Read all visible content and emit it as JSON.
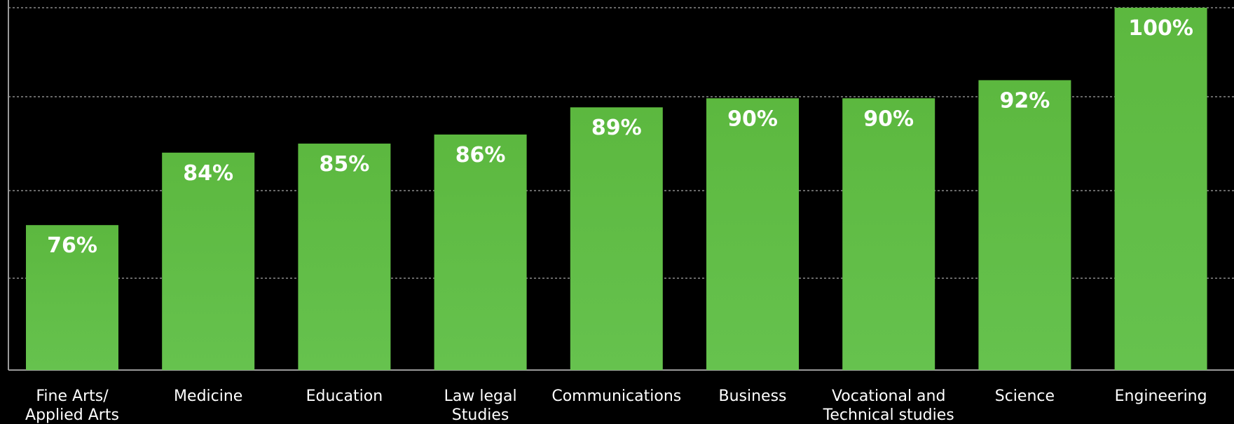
{
  "chart_data": {
    "type": "bar",
    "categories": [
      [
        "Fine Arts/",
        "Applied Arts"
      ],
      [
        "Medicine"
      ],
      [
        "Education"
      ],
      [
        "Law legal",
        "Studies"
      ],
      [
        "Communications"
      ],
      [
        "Business"
      ],
      [
        "Vocational and",
        "Technical studies"
      ],
      [
        "Science"
      ],
      [
        "Engineering"
      ]
    ],
    "values": [
      76,
      84,
      85,
      86,
      89,
      90,
      90,
      92,
      100
    ],
    "value_labels": [
      "76%",
      "84%",
      "85%",
      "86%",
      "89%",
      "90%",
      "90%",
      "92%",
      "100%"
    ],
    "ylim": [
      0,
      100
    ],
    "grid": true,
    "bar_color": "#5cb83f",
    "bar_color_bottom": "#66c24e",
    "background": "#000000",
    "text_color": "#ffffff"
  }
}
